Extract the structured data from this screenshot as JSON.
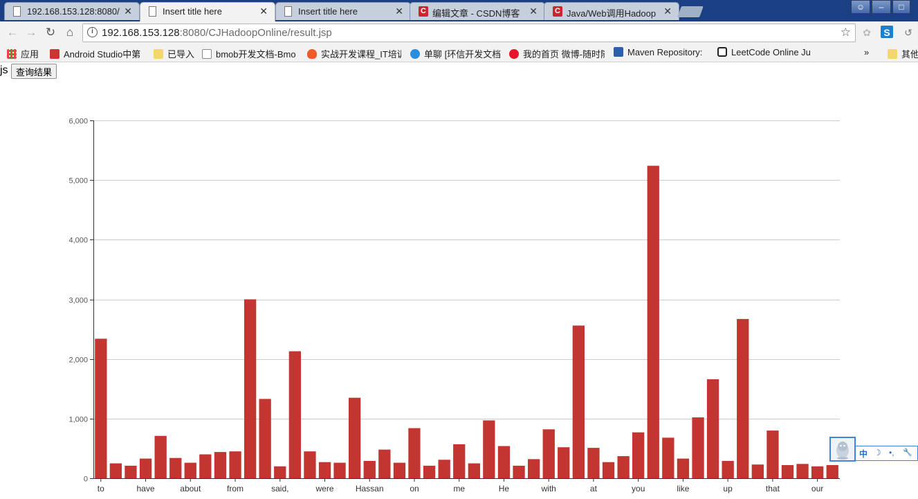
{
  "tabs": [
    {
      "title": "192.168.153.128:8080/",
      "icon": "page-icon",
      "active": false
    },
    {
      "title": "Insert title here",
      "icon": "page-icon",
      "active": true
    },
    {
      "title": "Insert title here",
      "icon": "page-icon",
      "active": false
    },
    {
      "title": "编辑文章 - CSDN博客",
      "icon": "csdn-icon",
      "active": false
    },
    {
      "title": "Java/Web调用Hadoop",
      "icon": "csdn-icon",
      "active": false
    }
  ],
  "address": {
    "host": "192.168.153.128",
    "path": ":8080/CJHadoopOnline/result.jsp"
  },
  "bookmarks": [
    {
      "label": "应用",
      "icon": "apps-grid-icon"
    },
    {
      "label": "Android Studio中第",
      "icon": "shield-icon"
    },
    {
      "label": "已导入",
      "icon": "folder-icon"
    },
    {
      "label": "bmob开发文档-Bmo",
      "icon": "bmob-icon"
    },
    {
      "label": "实战开发课程_IT培训",
      "icon": "flame-icon"
    },
    {
      "label": "单聊 [环信开发文档]",
      "icon": "easemob-icon"
    },
    {
      "label": "我的首页 微博-随时随",
      "icon": "weibo-icon"
    },
    {
      "label": "Maven Repository:",
      "icon": "mvn-icon"
    },
    {
      "label": "LeetCode Online Ju",
      "icon": "leetcode-icon"
    },
    {
      "label": "»",
      "icon": ""
    },
    {
      "label": "其他",
      "icon": "folder-icon"
    }
  ],
  "page": {
    "prefix_text": "js",
    "query_button": "查询结果"
  },
  "qq_bar": {
    "items": [
      "中",
      "☽",
      "•,",
      "🔧"
    ]
  },
  "colors": {
    "bar": "#c23531"
  },
  "chart_data": {
    "type": "bar",
    "ylim": [
      0,
      6000
    ],
    "yticks": [
      "0",
      "1,000",
      "2,000",
      "3,000",
      "4,000",
      "5,000",
      "6,000"
    ],
    "grid": true,
    "xtick_labels": [
      "to",
      "have",
      "about",
      "from",
      "said,",
      "were",
      "Hassan",
      "on",
      "me",
      "He",
      "with",
      "at",
      "you",
      "like",
      "up",
      "that",
      "our"
    ],
    "values": [
      2340,
      250,
      210,
      330,
      710,
      340,
      260,
      400,
      440,
      450,
      3000,
      1330,
      200,
      2130,
      450,
      270,
      260,
      1350,
      290,
      480,
      260,
      840,
      210,
      310,
      570,
      250,
      970,
      540,
      210,
      320,
      820,
      520,
      2560,
      510,
      270,
      370,
      770,
      5240,
      680,
      330,
      1020,
      1660,
      290,
      2670,
      230,
      800,
      220,
      240,
      200,
      220
    ]
  }
}
